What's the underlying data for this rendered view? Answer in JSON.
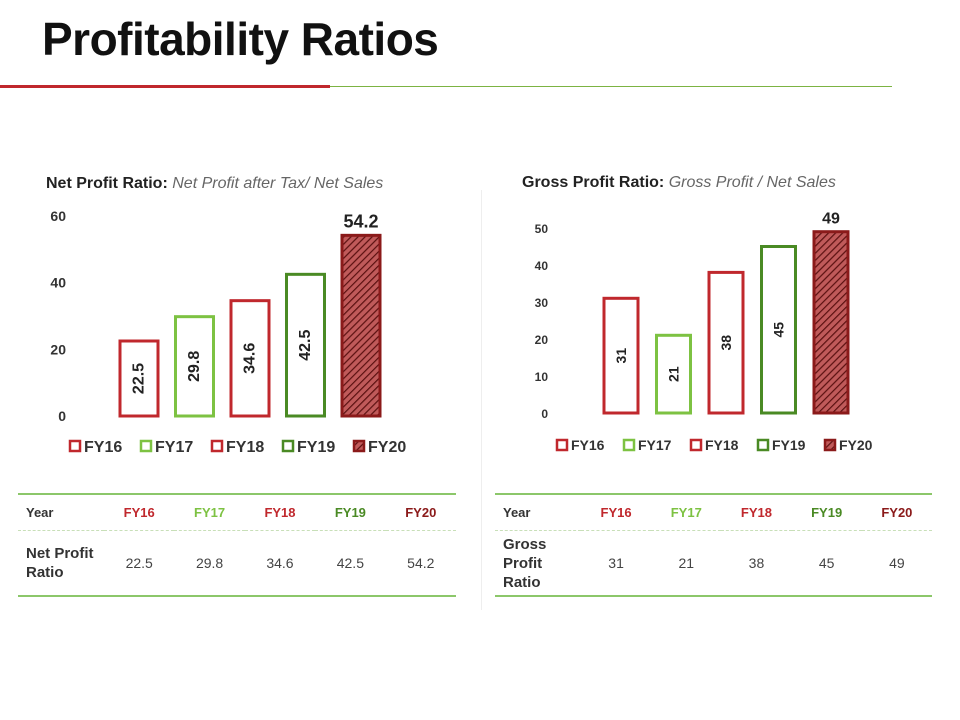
{
  "page": {
    "title": "Profitability Ratios"
  },
  "colors": {
    "red": "#c0282d",
    "lightgreen": "#7dc242",
    "darkgreen": "#4a8a24",
    "darkred": "#8b1a1a"
  },
  "chart_data": [
    {
      "type": "bar",
      "title_label": "Net Profit Ratio:",
      "title_formula": "Net Profit after Tax/ Net Sales",
      "categories": [
        "FY16",
        "FY17",
        "FY18",
        "FY19",
        "FY20"
      ],
      "values": [
        22.5,
        29.8,
        34.6,
        42.5,
        54.2
      ],
      "value_labels": [
        "22.5",
        "29.8",
        "34.6",
        "42.5",
        "54.2"
      ],
      "ylim": [
        0,
        60
      ],
      "yticks": [
        "0",
        "20",
        "40",
        "60"
      ],
      "legend": [
        "FY16",
        "FY17",
        "FY18",
        "FY19",
        "FY20"
      ],
      "legend_position": "bottom",
      "bar_styles": [
        "red",
        "lightgreen",
        "red",
        "darkgreen",
        "hatched"
      ]
    },
    {
      "type": "bar",
      "title_label": "Gross Profit Ratio:",
      "title_formula": "Gross Profit / Net Sales",
      "categories": [
        "FY16",
        "FY17",
        "FY18",
        "FY19",
        "FY20"
      ],
      "values": [
        31,
        21,
        38,
        45,
        49
      ],
      "value_labels": [
        "31",
        "21",
        "38",
        "45",
        "49"
      ],
      "ylim": [
        0,
        50
      ],
      "yticks": [
        "0",
        "10",
        "20",
        "30",
        "40",
        "50"
      ],
      "legend": [
        "FY16",
        "FY17",
        "FY18",
        "FY19",
        "FY20"
      ],
      "legend_position": "bottom",
      "bar_styles": [
        "red",
        "lightgreen",
        "red",
        "darkgreen",
        "hatched"
      ]
    }
  ],
  "tables": {
    "net": {
      "header_label": "Year",
      "years": [
        "FY16",
        "FY17",
        "FY18",
        "FY19",
        "FY20"
      ],
      "row_label": "Net Profit Ratio",
      "values": [
        "22.5",
        "29.8",
        "34.6",
        "42.5",
        "54.2"
      ]
    },
    "gross": {
      "header_label": "Year",
      "years": [
        "FY16",
        "FY17",
        "FY18",
        "FY19",
        "FY20"
      ],
      "row_label": "Gross Profit Ratio",
      "values": [
        "31",
        "21",
        "38",
        "45",
        "49"
      ]
    }
  }
}
